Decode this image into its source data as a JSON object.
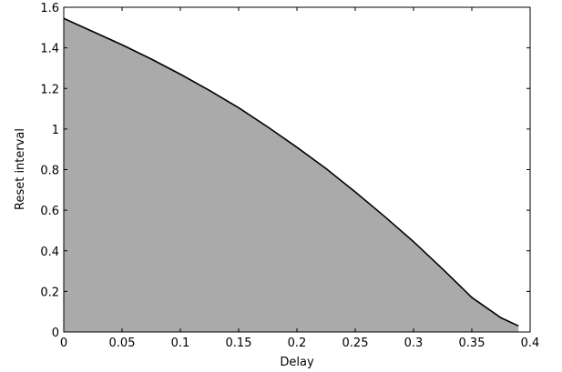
{
  "chart_data": {
    "type": "area",
    "title": "",
    "xlabel": "Delay",
    "ylabel": "Reset interval",
    "xlim": [
      0,
      0.4
    ],
    "ylim": [
      0,
      1.6
    ],
    "grid": false,
    "fill_color": "#aaaaaa",
    "line_color": "#000000",
    "x_ticks": [
      {
        "value": 0,
        "label": "0"
      },
      {
        "value": 0.05,
        "label": "0.05"
      },
      {
        "value": 0.1,
        "label": "0.1"
      },
      {
        "value": 0.15,
        "label": "0.15"
      },
      {
        "value": 0.2,
        "label": "0.2"
      },
      {
        "value": 0.25,
        "label": "0.25"
      },
      {
        "value": 0.3,
        "label": "0.3"
      },
      {
        "value": 0.35,
        "label": "0.35"
      },
      {
        "value": 0.4,
        "label": "0.4"
      }
    ],
    "y_ticks": [
      {
        "value": 0,
        "label": "0"
      },
      {
        "value": 0.2,
        "label": "0.2"
      },
      {
        "value": 0.4,
        "label": "0.4"
      },
      {
        "value": 0.6,
        "label": "0.6"
      },
      {
        "value": 0.8,
        "label": "0.8"
      },
      {
        "value": 1.0,
        "label": "1"
      },
      {
        "value": 1.2,
        "label": "1.2"
      },
      {
        "value": 1.4,
        "label": "1.4"
      },
      {
        "value": 1.6,
        "label": "1.6"
      }
    ],
    "series": [
      {
        "x": [
          0,
          0.025,
          0.05,
          0.075,
          0.1,
          0.125,
          0.15,
          0.175,
          0.2,
          0.225,
          0.25,
          0.275,
          0.3,
          0.325,
          0.35,
          0.375,
          0.39
        ],
        "y": [
          1.545,
          1.48,
          1.415,
          1.345,
          1.27,
          1.19,
          1.105,
          1.01,
          0.91,
          0.805,
          0.69,
          0.57,
          0.445,
          0.31,
          0.17,
          0.07,
          0.03
        ]
      }
    ]
  }
}
